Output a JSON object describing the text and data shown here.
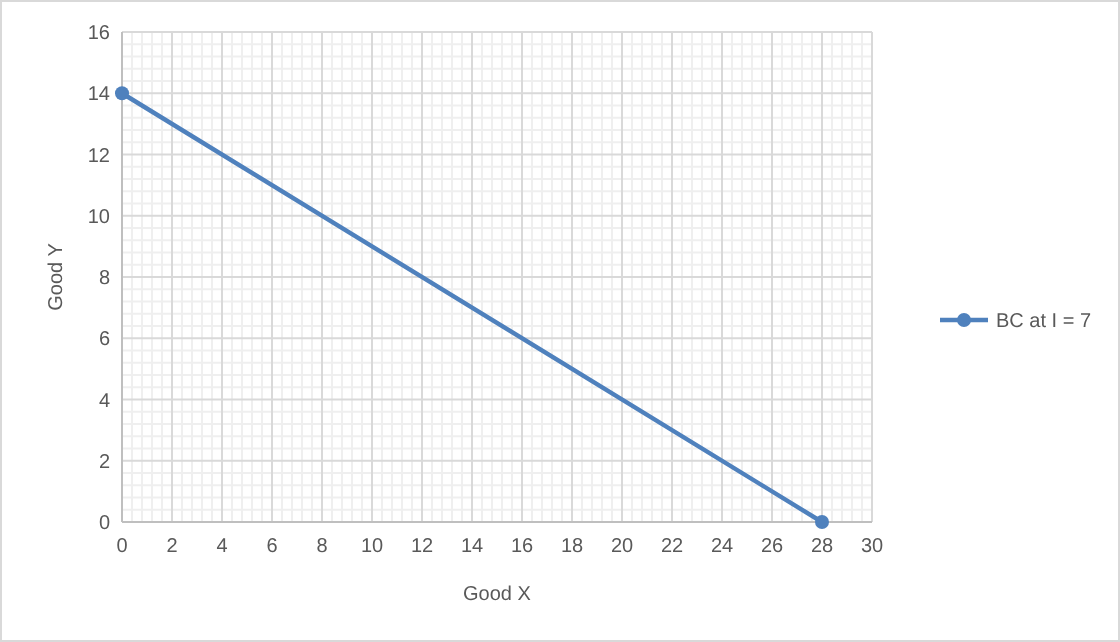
{
  "chart_data": {
    "type": "line",
    "xlabel": "Good X",
    "ylabel": "Good Y",
    "x": [
      0,
      28
    ],
    "series": [
      {
        "name": "BC at I = 7",
        "color": "#4f81bd",
        "values": [
          14,
          0
        ]
      }
    ],
    "xlim": [
      0,
      30
    ],
    "xticks": [
      0,
      2,
      4,
      6,
      8,
      10,
      12,
      14,
      16,
      18,
      20,
      22,
      24,
      26,
      28,
      30
    ],
    "ylim": [
      0,
      16
    ],
    "yticks": [
      0,
      2,
      4,
      6,
      8,
      10,
      12,
      14,
      16
    ],
    "grid": true,
    "legend": "right",
    "marker": "circle",
    "line_style": "solid"
  }
}
